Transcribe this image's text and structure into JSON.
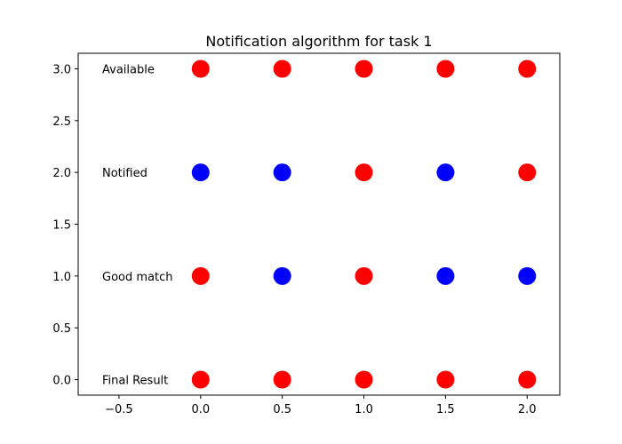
{
  "chart_data": {
    "type": "scatter",
    "title": "Notification algorithm for task 1",
    "xlabel": "",
    "ylabel": "",
    "xlim": [
      -0.75,
      2.2
    ],
    "ylim": [
      -0.15,
      3.15
    ],
    "grid": false,
    "x_ticks": [
      -0.5,
      0.0,
      0.5,
      1.0,
      1.5,
      2.0
    ],
    "x_tick_labels": [
      "−0.5",
      "0.0",
      "0.5",
      "1.0",
      "1.5",
      "2.0"
    ],
    "y_ticks": [
      0.0,
      0.5,
      1.0,
      1.5,
      2.0,
      2.5,
      3.0
    ],
    "y_tick_labels": [
      "0.0",
      "0.5",
      "1.0",
      "1.5",
      "2.0",
      "2.5",
      "3.0"
    ],
    "row_labels": [
      {
        "y": 3.0,
        "text": "Available"
      },
      {
        "y": 2.0,
        "text": "Notified"
      },
      {
        "y": 1.0,
        "text": "Good match"
      },
      {
        "y": 0.0,
        "text": "Final Result"
      }
    ],
    "colors": {
      "red": "#ff0000",
      "blue": "#0000ff"
    },
    "points": [
      {
        "x": 0.0,
        "y": 3.0,
        "color": "red"
      },
      {
        "x": 0.5,
        "y": 3.0,
        "color": "red"
      },
      {
        "x": 1.0,
        "y": 3.0,
        "color": "red"
      },
      {
        "x": 1.5,
        "y": 3.0,
        "color": "red"
      },
      {
        "x": 2.0,
        "y": 3.0,
        "color": "red"
      },
      {
        "x": 0.0,
        "y": 2.0,
        "color": "blue"
      },
      {
        "x": 0.5,
        "y": 2.0,
        "color": "blue"
      },
      {
        "x": 1.0,
        "y": 2.0,
        "color": "red"
      },
      {
        "x": 1.5,
        "y": 2.0,
        "color": "blue"
      },
      {
        "x": 2.0,
        "y": 2.0,
        "color": "red"
      },
      {
        "x": 0.0,
        "y": 1.0,
        "color": "red"
      },
      {
        "x": 0.5,
        "y": 1.0,
        "color": "blue"
      },
      {
        "x": 1.0,
        "y": 1.0,
        "color": "red"
      },
      {
        "x": 1.5,
        "y": 1.0,
        "color": "blue"
      },
      {
        "x": 2.0,
        "y": 1.0,
        "color": "blue"
      },
      {
        "x": 0.0,
        "y": 0.0,
        "color": "red"
      },
      {
        "x": 0.5,
        "y": 0.0,
        "color": "red"
      },
      {
        "x": 1.0,
        "y": 0.0,
        "color": "red"
      },
      {
        "x": 1.5,
        "y": 0.0,
        "color": "red"
      },
      {
        "x": 2.0,
        "y": 0.0,
        "color": "red"
      }
    ]
  }
}
